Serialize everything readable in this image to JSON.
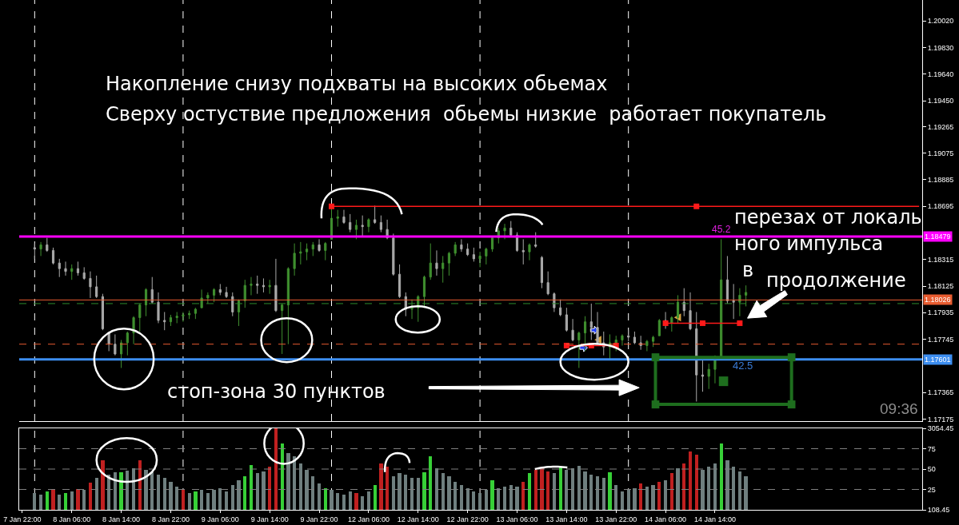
{
  "chart_data": [
    {
      "type": "candlestick",
      "categories": [
        null,
        null,
        null,
        null,
        null,
        null,
        null,
        null,
        null,
        null,
        null,
        null,
        null,
        null,
        null,
        null,
        null,
        null,
        null,
        null,
        null,
        null,
        null,
        null,
        null,
        null,
        null,
        null,
        null,
        null,
        null,
        null,
        null,
        null,
        null,
        null,
        null,
        null,
        null,
        null,
        null,
        null,
        null,
        null,
        null,
        null,
        null,
        null,
        null,
        null,
        null,
        null,
        null,
        null,
        null,
        null,
        null,
        null,
        null,
        null,
        null,
        null,
        null,
        null,
        null,
        null,
        null,
        null,
        null,
        null,
        null,
        null,
        null,
        null,
        null,
        null,
        null,
        null,
        null,
        null,
        null,
        null,
        null,
        null,
        null,
        null,
        null,
        null,
        null,
        null,
        null,
        null,
        null,
        null,
        null,
        null,
        null,
        null,
        null,
        null,
        null,
        null,
        null,
        null,
        null,
        null,
        null,
        null,
        null,
        null,
        null,
        null,
        null,
        null,
        null,
        null,
        null,
        null,
        null,
        null,
        null,
        null,
        null,
        null,
        null,
        null,
        null,
        null,
        null,
        null,
        null,
        null,
        null,
        null,
        null,
        null,
        null,
        null,
        null,
        null,
        null,
        null,
        null,
        null,
        null,
        null
      ],
      "series": [
        {
          "type": "candlestick",
          "ohlc": [
            null,
            null,
            [
              1.184,
              1.1843,
              1.1832,
              1.1839
            ],
            [
              1.1839,
              1.1844,
              1.1834,
              1.1842
            ],
            [
              1.1842,
              1.1847,
              1.1837,
              1.1838
            ],
            [
              1.1838,
              1.184,
              1.1828,
              1.1829
            ],
            [
              1.1829,
              1.1832,
              1.1819,
              1.1825
            ],
            [
              1.1825,
              1.183,
              1.182,
              1.1823
            ],
            [
              1.1823,
              1.1828,
              1.1817,
              1.1825
            ],
            [
              1.1825,
              1.183,
              1.182,
              1.1822
            ],
            [
              1.1822,
              1.1826,
              1.1817,
              1.1818
            ],
            [
              1.1818,
              1.1823,
              1.1804,
              1.1812
            ],
            [
              1.1812,
              1.182,
              1.1804,
              1.1805
            ],
            [
              1.1805,
              1.1807,
              1.1781,
              1.1782
            ],
            [
              1.1779,
              1.178,
              1.1766,
              1.1771
            ],
            [
              1.1771,
              1.1778,
              1.1763,
              1.1764
            ],
            [
              1.1764,
              1.1774,
              1.1754,
              1.1772
            ],
            [
              1.1772,
              1.178,
              1.1763,
              1.1779
            ],
            [
              1.1779,
              1.1791,
              1.1771,
              1.179
            ],
            [
              1.179,
              1.18,
              1.178,
              1.1799
            ],
            [
              1.1799,
              1.1811,
              1.1791,
              1.181
            ],
            [
              1.181,
              1.1819,
              1.18,
              1.1801
            ],
            [
              1.1801,
              1.1808,
              1.1786,
              1.1788
            ],
            [
              1.1788,
              1.1794,
              1.1781,
              1.1787
            ],
            [
              1.1787,
              1.1792,
              1.1784,
              1.179
            ],
            [
              1.179,
              1.1794,
              1.1786,
              1.1791
            ],
            [
              1.1791,
              1.1794,
              1.1787,
              1.1792
            ],
            [
              1.1792,
              1.1795,
              1.1789,
              1.1793
            ],
            [
              1.1793,
              1.1797,
              1.1789,
              1.1796
            ],
            [
              1.1797,
              1.181,
              1.1797,
              1.1804
            ],
            [
              1.1804,
              1.1808,
              1.18,
              1.1806
            ],
            [
              1.1806,
              1.1811,
              1.1801,
              1.181
            ],
            [
              1.181,
              1.1814,
              1.1806,
              1.1808
            ],
            [
              1.1808,
              1.1812,
              1.1804,
              1.1805
            ],
            [
              1.1805,
              1.1808,
              1.1791,
              1.1794
            ],
            [
              1.1794,
              1.1803,
              1.1784,
              1.1802
            ],
            [
              1.1802,
              1.1817,
              1.1797,
              1.1813
            ],
            [
              1.1813,
              1.1819,
              1.1806,
              1.1814
            ],
            [
              1.1814,
              1.182,
              1.1807,
              1.1813
            ],
            [
              1.1813,
              1.1818,
              1.1808,
              1.1812
            ],
            [
              1.1812,
              1.1817,
              1.1807,
              1.1813
            ],
            [
              1.1813,
              1.1832,
              1.1794,
              1.1795
            ],
            [
              1.1795,
              1.18,
              1.1764,
              1.1799
            ],
            [
              1.1799,
              1.1826,
              1.1771,
              1.1825
            ],
            [
              1.1825,
              1.1843,
              1.182,
              1.1836
            ],
            [
              1.1836,
              1.1844,
              1.1828,
              1.1837
            ],
            [
              1.1837,
              1.1843,
              1.1831,
              1.1839
            ],
            [
              1.1839,
              1.1844,
              1.1834,
              1.1842
            ],
            [
              1.1842,
              1.1846,
              1.1837,
              1.1838
            ],
            [
              1.1838,
              1.1844,
              1.1831,
              1.1843
            ],
            [
              1.1846,
              1.1868,
              1.1846,
              1.1861
            ],
            [
              1.1861,
              1.1867,
              1.1855,
              1.1862
            ],
            [
              1.1862,
              1.1867,
              1.1857,
              1.1858
            ],
            [
              1.1858,
              1.1864,
              1.1851,
              1.1853
            ],
            [
              1.1853,
              1.186,
              1.1846,
              1.1856
            ],
            [
              1.1856,
              1.1863,
              1.1848,
              1.1855
            ],
            [
              1.1855,
              1.1861,
              1.1851,
              1.186
            ],
            [
              1.186,
              1.187,
              1.1857,
              1.1858
            ],
            [
              1.1858,
              1.1863,
              1.1851,
              1.1853
            ],
            [
              1.1853,
              1.186,
              1.1846,
              1.1847
            ],
            [
              1.1847,
              1.185,
              1.182,
              1.1821
            ],
            [
              1.1821,
              1.1828,
              1.1804,
              1.1805
            ],
            [
              1.1805,
              1.1808,
              1.1791,
              1.1796
            ],
            [
              1.1796,
              1.1803,
              1.1789,
              1.1797
            ],
            [
              1.1797,
              1.1806,
              1.1787,
              1.1805
            ],
            [
              1.1805,
              1.182,
              1.1797,
              1.1819
            ],
            [
              1.1819,
              1.1843,
              1.1817,
              1.1829
            ],
            [
              1.1829,
              1.1838,
              1.182,
              1.1825
            ],
            [
              1.1825,
              1.1834,
              1.1815,
              1.1829
            ],
            [
              1.1829,
              1.1837,
              1.182,
              1.1836
            ],
            [
              1.1836,
              1.1844,
              1.1834,
              1.1842
            ],
            [
              1.1842,
              1.1846,
              1.1837,
              1.1839
            ],
            [
              1.1839,
              1.1843,
              1.1834,
              1.1835
            ],
            [
              1.1835,
              1.184,
              1.183,
              1.1832
            ],
            [
              1.1832,
              1.1837,
              1.1826,
              1.1834
            ],
            [
              1.1834,
              1.184,
              1.1828,
              1.1839
            ],
            [
              1.1839,
              1.1848,
              1.1837,
              1.1847
            ],
            [
              1.1847,
              1.1854,
              1.1843,
              1.1852
            ],
            [
              1.1852,
              1.1857,
              1.1846,
              1.1854
            ],
            [
              1.1854,
              1.1859,
              1.1848,
              1.1849
            ],
            [
              1.1849,
              1.1851,
              1.1837,
              1.1838
            ],
            [
              1.1838,
              1.1846,
              1.1828,
              1.1837
            ],
            [
              1.1837,
              1.1843,
              1.1831,
              1.1842
            ],
            [
              1.1842,
              1.1851,
              1.184,
              1.1841
            ],
            [
              1.1833,
              1.1834,
              1.1811,
              1.1815
            ],
            [
              1.1815,
              1.1823,
              1.1806,
              1.1807
            ],
            [
              1.1807,
              1.1808,
              1.1794,
              1.1797
            ],
            [
              1.1797,
              1.1803,
              1.1791,
              1.1792
            ],
            [
              1.1792,
              1.1797,
              1.178,
              1.1781
            ],
            [
              1.1781,
              1.1789,
              1.1773,
              1.1774
            ],
            [
              1.1774,
              1.178,
              1.1754,
              1.1779
            ],
            [
              1.1779,
              1.1791,
              1.1766,
              1.1787
            ],
            [
              1.1787,
              1.18,
              1.1774,
              1.1783
            ],
            [
              1.1783,
              1.1794,
              1.1771,
              1.1772
            ],
            [
              1.1772,
              1.178,
              1.1763,
              1.1769
            ],
            [
              1.1769,
              1.1778,
              1.176,
              1.1772
            ],
            [
              1.1772,
              1.1777,
              1.1766,
              1.1774
            ],
            [
              1.1774,
              1.1778,
              1.177,
              1.1777
            ],
            [
              1.1777,
              1.1781,
              1.1773,
              1.1776
            ],
            [
              1.1776,
              1.178,
              1.1771,
              1.1772
            ],
            [
              1.1772,
              1.1777,
              1.1767,
              1.177
            ],
            [
              1.177,
              1.1774,
              1.1766,
              1.1773
            ],
            [
              1.1773,
              1.1777,
              1.1769,
              1.1776
            ],
            [
              1.1777,
              1.1789,
              1.1777,
              1.1788
            ],
            [
              1.1788,
              1.1794,
              1.1782,
              1.1786
            ],
            [
              1.1786,
              1.1791,
              1.178,
              1.179
            ],
            [
              1.179,
              1.1806,
              1.1786,
              1.1801
            ],
            [
              1.1801,
              1.1811,
              1.1791,
              1.1795
            ],
            [
              1.1795,
              1.1808,
              1.1781,
              1.1782
            ],
            [
              1.1782,
              1.1794,
              1.173,
              1.1749
            ],
            [
              1.1749,
              1.176,
              1.1737,
              1.1748
            ],
            [
              1.1748,
              1.1757,
              1.1739,
              1.1753
            ],
            [
              1.1753,
              1.1763,
              1.1743,
              1.1762
            ],
            [
              1.1762,
              1.1846,
              1.176,
              1.1817
            ],
            [
              1.1817,
              1.1834,
              1.18,
              1.1802
            ],
            [
              1.1802,
              1.1814,
              1.1789,
              1.1801
            ],
            [
              1.1801,
              1.1811,
              1.1791,
              1.1806
            ],
            [
              1.1806,
              1.1813,
              1.1798,
              1.1808
            ],
            null,
            null,
            null,
            null,
            null,
            null,
            null,
            null,
            null,
            null,
            null,
            null,
            null,
            null,
            null,
            null,
            null,
            null,
            null,
            null,
            null,
            null,
            null,
            null,
            null,
            null,
            null,
            null
          ],
          "colors": [
            null,
            null,
            "#a9a9a9",
            "#3f8f2f",
            "#a9a9a9",
            "#a9a9a9",
            "#a9a9a9",
            "#a9a9a9",
            "#3f8f2f",
            "#a9a9a9",
            "#a9a9a9",
            "#a9a9a9",
            "#a9a9a9",
            "#a9a9a9",
            "#a9a9a9",
            "#a9a9a9",
            "#3f8f2f",
            "#3f8f2f",
            "#3f8f2f",
            "#3f8f2f",
            "#3f8f2f",
            "#a9a9a9",
            "#a9a9a9",
            "#a9a9a9",
            "#3f8f2f",
            "#3f8f2f",
            "#3f8f2f",
            "#3f8f2f",
            "#3f8f2f",
            "#3f8f2f",
            "#3f8f2f",
            "#3f8f2f",
            "#a9a9a9",
            "#a9a9a9",
            "#a9a9a9",
            "#3f8f2f",
            "#3f8f2f",
            "#3f8f2f",
            "#a9a9a9",
            "#a9a9a9",
            "#3f8f2f",
            "#a9a9a9",
            "#3f8f2f",
            "#3f8f2f",
            "#3f8f2f",
            "#3f8f2f",
            "#3f8f2f",
            "#3f8f2f",
            "#a9a9a9",
            "#3f8f2f",
            "#3f8f2f",
            "#3f8f2f",
            "#a9a9a9",
            "#a9a9a9",
            "#3f8f2f",
            "#a9a9a9",
            "#3f8f2f",
            "#a9a9a9",
            "#a9a9a9",
            "#a9a9a9",
            "#a9a9a9",
            "#a9a9a9",
            "#a9a9a9",
            "#3f8f2f",
            "#3f8f2f",
            "#3f8f2f",
            "#3f8f2f",
            "#a9a9a9",
            "#3f8f2f",
            "#3f8f2f",
            "#3f8f2f",
            "#a9a9a9",
            "#a9a9a9",
            "#a9a9a9",
            "#3f8f2f",
            "#3f8f2f",
            "#3f8f2f",
            "#3f8f2f",
            "#3f8f2f",
            "#a9a9a9",
            "#a9a9a9",
            "#a9a9a9",
            "#3f8f2f",
            "#a9a9a9",
            "#a9a9a9",
            "#a9a9a9",
            "#a9a9a9",
            "#a9a9a9",
            "#a9a9a9",
            "#a9a9a9",
            "#3f8f2f",
            "#3f8f2f",
            "#a9a9a9",
            "#a9a9a9",
            "#a9a9a9",
            "#3f8f2f",
            "#3f8f2f",
            "#3f8f2f",
            "#a9a9a9",
            "#a9a9a9",
            "#a9a9a9",
            "#3f8f2f",
            "#3f8f2f",
            "#3f8f2f",
            "#a9a9a9",
            "#3f8f2f",
            "#3f8f2f",
            "#a9a9a9",
            "#a9a9a9",
            "#a9a9a9",
            "#a9a9a9",
            "#3f8f2f",
            "#3f8f2f",
            "#3f8f2f",
            "#a9a9a9",
            "#a9a9a9",
            "#3f8f2f",
            "#3f8f2f",
            null,
            null,
            null,
            null,
            null,
            null,
            null,
            null,
            null,
            null,
            null,
            null,
            null,
            null,
            null,
            null,
            null,
            null,
            null,
            null,
            null,
            null,
            null,
            null,
            null,
            null,
            null,
            null
          ]
        },
        {
          "type": "line",
          "color": "#ff1a1a",
          "values": [
            null,
            null,
            null,
            null,
            null,
            null,
            null,
            null,
            null,
            null,
            null,
            null,
            null,
            null,
            null,
            null,
            null,
            null,
            null,
            null,
            null,
            null,
            null,
            null,
            null,
            null,
            null,
            null,
            null,
            null,
            null,
            null,
            null,
            null,
            null,
            null,
            null,
            null,
            null,
            null,
            null,
            null,
            null,
            null,
            null,
            null,
            null,
            null,
            null,
            null,
            1.18695,
            1.18695,
            1.18695,
            1.18695,
            1.18695,
            1.18695,
            1.18695,
            1.18695,
            1.18695,
            1.18695,
            1.18695,
            1.18695,
            1.18695,
            1.18695,
            1.18695,
            1.18695,
            1.18695,
            1.18695,
            1.18695,
            1.18695,
            1.18695,
            1.18695,
            1.18695,
            1.18695,
            1.18695,
            1.18695,
            1.18695,
            1.18695,
            1.18695,
            1.18695,
            1.18695,
            1.18695,
            1.18695,
            1.18695,
            1.18695,
            1.18695,
            1.18695,
            1.18695,
            1.18695,
            1.18695,
            1.18695,
            1.18695,
            1.18695,
            1.18695,
            1.18695,
            1.18695,
            1.18695,
            1.18695,
            1.18695,
            1.18695,
            1.18695,
            1.18695,
            1.18695,
            1.18695,
            1.18695,
            1.18695,
            1.18695,
            1.18695,
            1.18695,
            1.18695,
            1.18695,
            1.18695,
            1.18695,
            1.18695,
            1.18695,
            1.18695,
            1.18695,
            1.18695,
            1.18695,
            1.18695,
            1.18695,
            1.18695,
            1.18695,
            1.18695,
            1.18695,
            1.18695,
            1.18695,
            1.18695,
            1.18695,
            1.18695,
            1.18695,
            1.18695,
            1.18695,
            1.18695,
            1.18695,
            1.18695,
            1.18695,
            1.18695,
            1.18695,
            1.18695,
            1.18695,
            1.18695,
            1.18695,
            1.18695,
            1.18695,
            1.18695
          ]
        },
        {
          "type": "line",
          "color": "#ff1a1a",
          "values": [
            null,
            null,
            null,
            null,
            null,
            null,
            null,
            null,
            null,
            null,
            null,
            null,
            null,
            null,
            null,
            null,
            null,
            null,
            null,
            null,
            null,
            null,
            null,
            null,
            null,
            null,
            null,
            null,
            null,
            null,
            null,
            null,
            null,
            null,
            null,
            null,
            null,
            null,
            null,
            null,
            null,
            null,
            null,
            null,
            null,
            null,
            null,
            null,
            null,
            null,
            null,
            null,
            null,
            null,
            null,
            null,
            null,
            null,
            null,
            null,
            null,
            null,
            null,
            null,
            null,
            null,
            null,
            null,
            null,
            null,
            null,
            null,
            null,
            null,
            null,
            null,
            null,
            null,
            null,
            null,
            null,
            null,
            null,
            null,
            null,
            null,
            null,
            null,
            null,
            null,
            null,
            null,
            null,
            null,
            null,
            null,
            null,
            null,
            null,
            null,
            null,
            null,
            null,
            null,
            1.1786,
            1.1786,
            1.1786,
            1.1786,
            1.1786,
            1.1786,
            1.1786,
            1.1786,
            1.1786,
            1.1786,
            1.1786,
            1.1786,
            1.1786,
            null,
            null,
            null,
            null,
            null,
            null,
            null,
            null,
            null,
            null,
            null,
            null,
            null,
            null,
            null,
            null,
            null,
            null,
            null,
            null,
            null,
            null,
            null,
            null,
            null,
            null,
            null,
            null,
            null
          ]
        },
        {
          "type": "line",
          "color": "#ff1a1a",
          "values": [
            null,
            null,
            null,
            null,
            null,
            null,
            null,
            null,
            null,
            null,
            null,
            null,
            null,
            null,
            null,
            null,
            null,
            null,
            null,
            null,
            null,
            null,
            null,
            null,
            null,
            null,
            null,
            null,
            null,
            null,
            null,
            null,
            null,
            null,
            null,
            null,
            null,
            null,
            null,
            null,
            null,
            null,
            null,
            null,
            null,
            null,
            null,
            null,
            null,
            null,
            null,
            null,
            null,
            null,
            null,
            null,
            null,
            null,
            null,
            null,
            null,
            null,
            null,
            null,
            null,
            null,
            null,
            null,
            null,
            null,
            null,
            null,
            null,
            null,
            null,
            null,
            null,
            null,
            null,
            null,
            null,
            null,
            null,
            null,
            null,
            null,
            null,
            null,
            1.177,
            1.177,
            1.177,
            1.177,
            1.177,
            1.177,
            1.177,
            1.177,
            1.177,
            null,
            null,
            null,
            null,
            null,
            null,
            null,
            null,
            null,
            null,
            null,
            null,
            null,
            null,
            null,
            null,
            null,
            null,
            null,
            null,
            null,
            null,
            null,
            null,
            null,
            null,
            null,
            null,
            null,
            null,
            null,
            null,
            null,
            null,
            null,
            null,
            null,
            null,
            null,
            null,
            null,
            null,
            null,
            null,
            null,
            null,
            null,
            null,
            null
          ]
        },
        {
          "type": "scatter",
          "color": "#ff1a1a",
          "marker": "square",
          "values": [
            null,
            null,
            null,
            null,
            null,
            null,
            null,
            null,
            null,
            null,
            null,
            null,
            null,
            null,
            null,
            null,
            null,
            null,
            null,
            null,
            null,
            null,
            null,
            null,
            null,
            null,
            null,
            null,
            null,
            null,
            null,
            null,
            null,
            null,
            null,
            null,
            null,
            null,
            null,
            null,
            null,
            null,
            null,
            null,
            null,
            null,
            null,
            null,
            null,
            null,
            1.18695,
            null,
            null,
            null,
            null,
            null,
            null,
            null,
            null,
            null,
            null,
            null,
            null,
            null,
            null,
            null,
            null,
            null,
            null,
            null,
            null,
            null,
            null,
            null,
            null,
            null,
            null,
            null,
            null,
            null,
            null,
            null,
            null,
            null,
            null,
            null,
            null,
            null,
            1.177,
            null,
            null,
            null,
            1.177,
            null,
            null,
            null,
            1.177,
            null,
            null,
            null,
            null,
            null,
            null,
            null,
            1.1786,
            null,
            null,
            null,
            null,
            1.18695,
            1.1786,
            null,
            null,
            null,
            null,
            null,
            1.1786,
            null,
            null,
            null,
            null,
            null,
            null,
            null,
            null,
            null,
            null,
            null,
            null,
            null,
            null,
            null,
            null,
            null,
            null,
            null,
            null,
            null,
            null,
            null,
            null,
            null,
            null,
            null,
            null,
            null
          ]
        }
      ],
      "ylim": [
        1.1716,
        1.2017
      ],
      "yticks": [
        {
          "value": 1.2002,
          "label": "1.20020"
        },
        {
          "value": 1.1983,
          "label": "1.19830"
        },
        {
          "value": 1.1964,
          "label": "1.19640"
        },
        {
          "value": 1.1945,
          "label": "1.19450"
        },
        1.19265,
        1.19075,
        1.18885,
        1.18695,
        1.18315,
        1.18125,
        1.17935,
        1.17745,
        1.17365,
        1.17175
      ],
      "tick_labels": "y",
      "ref_lines": [
        {
          "axis": "y",
          "value": 1.18479,
          "label": "1.18479",
          "color": "#ff00ff"
        },
        {
          "axis": "y",
          "value": 1.18026,
          "label": "1.18026",
          "color": "#e85c30"
        },
        {
          "axis": "y",
          "value": 1.17601,
          "label": "1.17601",
          "color": "#3d8ef0"
        },
        {
          "axis": "y",
          "value": 1.18,
          "color": "#2e8b2e",
          "line_style": "dashed"
        },
        {
          "axis": "y",
          "value": 1.1771,
          "color": "#e85c30",
          "line_style": "dashed"
        }
      ],
      "annotations": [
        "Накопление снизу подхваты на высоких обьемах",
        "Сверху остуствие предложения  обьемы низкие  работает покупатель",
        "перезах от локаль",
        "ного импульса",
        "в",
        "продолжение",
        "стоп-зона 30 пунктов",
        "09:36",
        "42.5",
        "45.2"
      ]
    },
    {
      "type": "bar",
      "categories": [
        "7 Jan 22:00",
        null,
        null,
        null,
        null,
        null,
        null,
        null,
        "8 Jan 06:00",
        null,
        null,
        null,
        null,
        null,
        null,
        null,
        "8 Jan 14:00",
        null,
        null,
        null,
        null,
        null,
        null,
        null,
        "8 Jan 22:00",
        null,
        null,
        null,
        null,
        null,
        null,
        null,
        "9 Jan 06:00",
        null,
        null,
        null,
        null,
        null,
        null,
        null,
        "9 Jan 14:00",
        null,
        null,
        null,
        null,
        null,
        null,
        null,
        "9 Jan 22:00",
        null,
        null,
        null,
        null,
        null,
        null,
        null,
        "12 Jan 06:00",
        null,
        null,
        null,
        null,
        null,
        null,
        null,
        "12 Jan 14:00",
        null,
        null,
        null,
        null,
        null,
        null,
        null,
        "12 Jan 22:00",
        null,
        null,
        null,
        null,
        null,
        null,
        null,
        "13 Jan 06:00",
        null,
        null,
        null,
        null,
        null,
        null,
        null,
        "13 Jan 14:00",
        null,
        null,
        null,
        null,
        null,
        null,
        null,
        "13 Jan 22:00",
        null,
        null,
        null,
        null,
        null,
        null,
        null,
        "14 Jan 06:00",
        null,
        null,
        null,
        null,
        null,
        null,
        null,
        "14 Jan 14:00",
        null,
        null,
        null,
        null,
        null,
        null,
        null,
        null,
        null,
        null,
        null,
        null,
        null,
        null,
        null,
        null,
        null,
        null,
        null,
        null,
        null,
        null,
        null,
        null,
        null,
        null,
        null,
        null,
        null,
        null,
        null,
        null,
        null
      ],
      "values": [
        null,
        null,
        710,
        650,
        770,
        830,
        650,
        710,
        770,
        860,
        830,
        1100,
        1250,
        1910,
        1370,
        1460,
        1460,
        1520,
        1610,
        1910,
        1550,
        1460,
        1370,
        1250,
        1130,
        950,
        830,
        710,
        770,
        830,
        710,
        830,
        890,
        770,
        1010,
        1190,
        1310,
        1730,
        1430,
        1490,
        1670,
        3050,
        2510,
        2150,
        2030,
        1790,
        1550,
        1310,
        1070,
        890,
        830,
        710,
        650,
        770,
        710,
        590,
        770,
        1010,
        1790,
        1670,
        1310,
        1430,
        1370,
        1250,
        1250,
        1460,
        2030,
        1610,
        1430,
        1310,
        1130,
        1010,
        890,
        770,
        710,
        830,
        1190,
        890,
        950,
        1010,
        950,
        1130,
        1430,
        1550,
        1610,
        1490,
        1430,
        1670,
        1550,
        1610,
        1700,
        1490,
        1370,
        1310,
        1250,
        1460,
        1010,
        770,
        830,
        890,
        1070,
        950,
        1010,
        1130,
        1190,
        1430,
        1610,
        1790,
        2210,
        2090,
        1550,
        1670,
        1790,
        2510,
        1910,
        1670,
        1490,
        1310,
        null,
        null,
        null,
        null,
        null,
        null,
        null,
        null,
        null,
        null,
        null,
        null,
        null,
        null,
        null,
        null,
        null,
        null,
        null,
        null,
        null,
        null,
        null,
        null,
        null,
        null,
        null,
        null
      ],
      "colors": [
        null,
        null,
        "#6f7f7f",
        "#6f7f7f",
        "#37d037",
        "#c02020",
        "#6f7f7f",
        "#37d037",
        "#6f7f7f",
        "#c02020",
        "#6f7f7f",
        "#c02020",
        "#6f7f7f",
        "#c02020",
        "#6f7f7f",
        "#6f7f7f",
        "#37d037",
        "#6f7f7f",
        "#6f7f7f",
        "#c02020",
        "#6f7f7f",
        "#6f7f7f",
        "#6f7f7f",
        "#6f7f7f",
        "#6f7f7f",
        "#6f7f7f",
        "#c02020",
        "#6f7f7f",
        "#37d037",
        "#6f7f7f",
        "#6f7f7f",
        "#6f7f7f",
        "#6f7f7f",
        "#6f7f7f",
        "#6f7f7f",
        "#6f7f7f",
        "#37d037",
        "#37d037",
        "#6f7f7f",
        "#6f7f7f",
        "#c02020",
        "#c02020",
        "#37d037",
        "#6f7f7f",
        "#6f7f7f",
        "#6f7f7f",
        "#6f7f7f",
        "#6f7f7f",
        "#6f7f7f",
        "#37d037",
        "#6f7f7f",
        "#6f7f7f",
        "#6f7f7f",
        "#6f7f7f",
        "#c02020",
        "#6f7f7f",
        "#6f7f7f",
        "#37d037",
        "#c02020",
        "#c02020",
        "#6f7f7f",
        "#6f7f7f",
        "#6f7f7f",
        "#6f7f7f",
        "#6f7f7f",
        "#37d037",
        "#37d037",
        "#6f7f7f",
        "#6f7f7f",
        "#6f7f7f",
        "#6f7f7f",
        "#6f7f7f",
        "#6f7f7f",
        "#6f7f7f",
        "#6f7f7f",
        "#6f7f7f",
        "#37d037",
        "#6f7f7f",
        "#6f7f7f",
        "#6f7f7f",
        "#6f7f7f",
        "#c02020",
        "#37d037",
        "#c02020",
        "#c02020",
        "#c02020",
        "#6f7f7f",
        "#37d037",
        "#6f7f7f",
        "#6f7f7f",
        "#6f7f7f",
        "#6f7f7f",
        "#6f7f7f",
        "#6f7f7f",
        "#6f7f7f",
        "#37d037",
        "#6f7f7f",
        "#6f7f7f",
        "#6f7f7f",
        "#6f7f7f",
        "#c02020",
        "#6f7f7f",
        "#6f7f7f",
        "#c02020",
        "#6f7f7f",
        "#c02020",
        "#6f7f7f",
        "#c02020",
        "#c02020",
        "#c02020",
        "#6f7f7f",
        "#6f7f7f",
        "#6f7f7f",
        "#37d037",
        "#6f7f7f",
        "#6f7f7f",
        "#6f7f7f",
        "#6f7f7f",
        null,
        null,
        null,
        null,
        null,
        null,
        null,
        null,
        null,
        null,
        null,
        null,
        null,
        null,
        null,
        null,
        null,
        null,
        null,
        null,
        null,
        null,
        null,
        null,
        null,
        null,
        null,
        null
      ],
      "ylim": [
        108.45,
        3054.45
      ],
      "yticks": [
        108.45,
        3054.45
      ],
      "y2lim": [
        0,
        100
      ],
      "y2ticks": [
        25,
        50,
        75
      ],
      "ref_lines": [
        {
          "axis": "y2",
          "value": 25,
          "color": "#808080",
          "line_style": "dashed"
        },
        {
          "axis": "y2",
          "value": 50,
          "color": "#808080",
          "line_style": "dashed"
        },
        {
          "axis": "y2",
          "value": 75,
          "color": "#808080",
          "line_style": "dashed"
        }
      ]
    }
  ]
}
